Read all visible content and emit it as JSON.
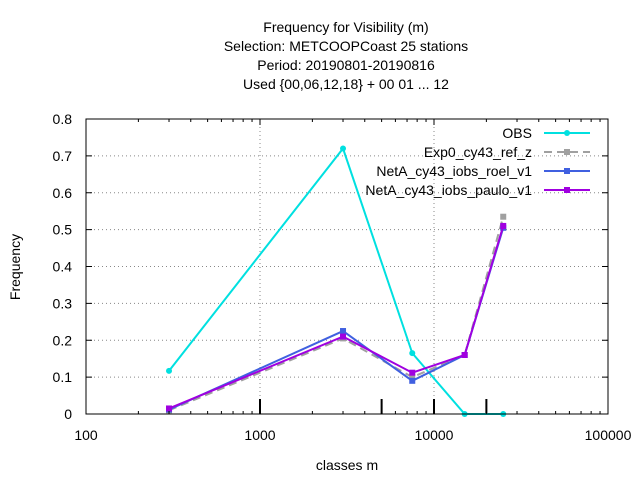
{
  "chart_data": {
    "type": "line",
    "title_lines": [
      "Frequency  for Visibility (m)",
      "Selection: METCOOPCoast     25 stations",
      "Period: 20190801-20190816",
      "Used {00,06,12,18} + 00 01 ... 12"
    ],
    "xlabel": "classes m",
    "ylabel": "Frequency",
    "xscale": "log",
    "xlim": [
      100,
      100000
    ],
    "ylim": [
      0,
      0.8
    ],
    "xticks": [
      100,
      1000,
      10000,
      100000
    ],
    "xtick_labels": [
      "100",
      "1000",
      "10000",
      "100000"
    ],
    "yticks": [
      0,
      0.1,
      0.2,
      0.3,
      0.4,
      0.5,
      0.6,
      0.7,
      0.8
    ],
    "ytick_labels": [
      "0",
      "0.1",
      "0.2",
      "0.3",
      "0.4",
      "0.5",
      "0.6",
      "0.7",
      "0.8"
    ],
    "grid": true,
    "legend_position": "top-right",
    "class_limits": [
      1000,
      5000,
      10000,
      20000
    ],
    "x": [
      300,
      3000,
      7500,
      15000,
      25000
    ],
    "series": [
      {
        "name": "OBS",
        "color": "#00e0e0",
        "dash": "solid",
        "marker": "circle",
        "values": [
          0.117,
          0.72,
          0.165,
          0.0,
          0.0
        ]
      },
      {
        "name": "Exp0_cy43_ref_z",
        "color": "#a0a0a0",
        "dash": "dashed",
        "marker": "square",
        "values": [
          0.01,
          0.205,
          0.1,
          0.16,
          0.535
        ]
      },
      {
        "name": "NetA_cy43_iobs_roel_v1",
        "color": "#4060e0",
        "dash": "solid",
        "marker": "square",
        "values": [
          0.012,
          0.225,
          0.09,
          0.16,
          0.505
        ]
      },
      {
        "name": "NetA_cy43_iobs_paulo_v1",
        "color": "#a000e0",
        "dash": "solid",
        "marker": "square",
        "values": [
          0.015,
          0.21,
          0.112,
          0.16,
          0.51
        ]
      }
    ]
  }
}
